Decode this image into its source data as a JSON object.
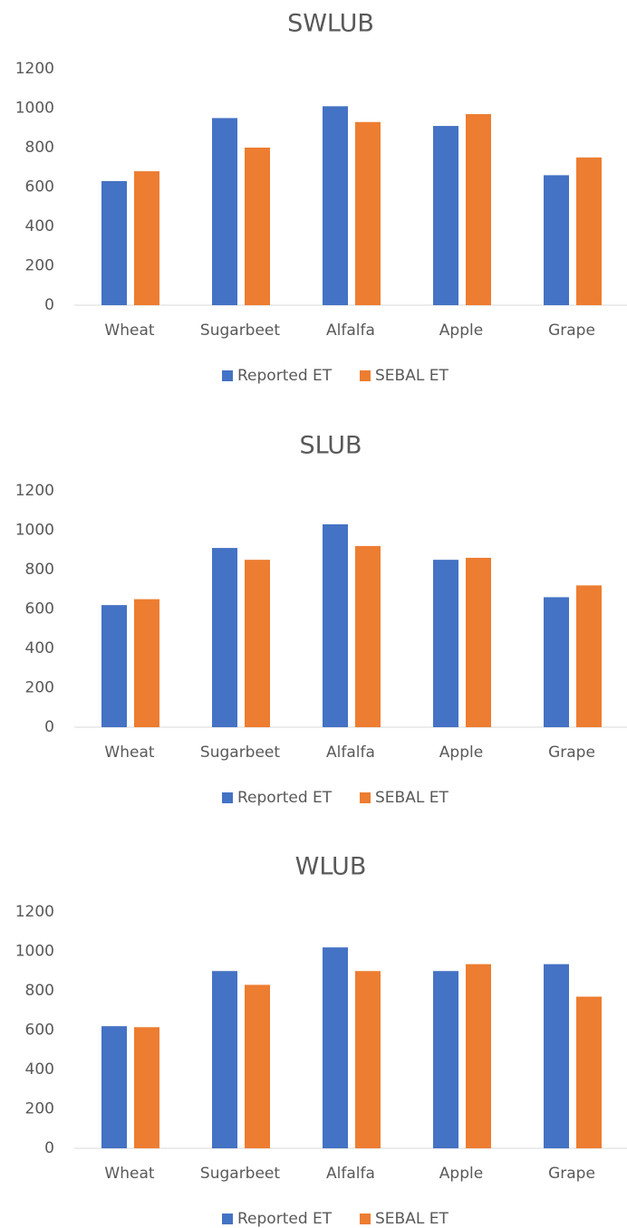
{
  "chart_data": [
    {
      "type": "bar",
      "title": "SWLUB",
      "categories": [
        "Wheat",
        "Sugarbeet",
        "Alfalfa",
        "Apple",
        "Grape"
      ],
      "series": [
        {
          "name": "Reported ET",
          "color": "#4472c4",
          "values": [
            630,
            950,
            1010,
            910,
            660
          ]
        },
        {
          "name": "SEBAL ET",
          "color": "#ed7d31",
          "values": [
            680,
            800,
            930,
            970,
            750
          ]
        }
      ],
      "ylim": [
        0,
        1200
      ],
      "yticks": [
        0,
        200,
        400,
        600,
        800,
        1000,
        1200
      ],
      "grid": false,
      "legend": "bottom"
    },
    {
      "type": "bar",
      "title": "SLUB",
      "categories": [
        "Wheat",
        "Sugarbeet",
        "Alfalfa",
        "Apple",
        "Grape"
      ],
      "series": [
        {
          "name": "Reported ET",
          "color": "#4472c4",
          "values": [
            620,
            910,
            1030,
            850,
            660
          ]
        },
        {
          "name": "SEBAL ET",
          "color": "#ed7d31",
          "values": [
            650,
            850,
            920,
            860,
            720
          ]
        }
      ],
      "ylim": [
        0,
        1200
      ],
      "yticks": [
        0,
        200,
        400,
        600,
        800,
        1000,
        1200
      ],
      "grid": false,
      "legend": "bottom"
    },
    {
      "type": "bar",
      "title": "WLUB",
      "categories": [
        "Wheat",
        "Sugarbeet",
        "Alfalfa",
        "Apple",
        "Grape"
      ],
      "series": [
        {
          "name": "Reported ET",
          "color": "#4472c4",
          "values": [
            620,
            900,
            1020,
            900,
            935
          ]
        },
        {
          "name": "SEBAL ET",
          "color": "#ed7d31",
          "values": [
            615,
            830,
            900,
            935,
            770
          ]
        }
      ],
      "ylim": [
        0,
        1200
      ],
      "yticks": [
        0,
        200,
        400,
        600,
        800,
        1000,
        1200
      ],
      "grid": false,
      "legend": "bottom"
    }
  ]
}
